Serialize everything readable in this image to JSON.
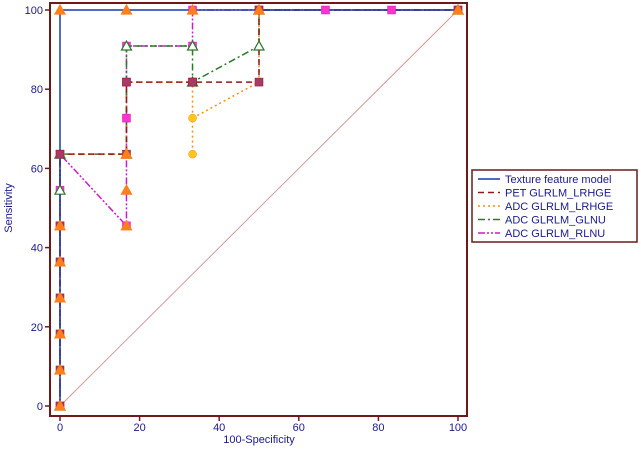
{
  "chart_data": {
    "type": "line",
    "title": "",
    "xlabel": "100-Specificity",
    "ylabel": "Sensitivity",
    "xlim": [
      0,
      100
    ],
    "ylim": [
      0,
      100
    ],
    "xticks": [
      "0",
      "20",
      "40",
      "60",
      "80",
      "100"
    ],
    "yticks": [
      "0",
      "20",
      "40",
      "60",
      "80",
      "100"
    ],
    "grid": false,
    "legend_position": "right",
    "frame_color": "#6b1a1a",
    "reference_line": {
      "x": [
        0,
        100
      ],
      "y": [
        0,
        100
      ],
      "color": "#d49a9a"
    },
    "series": [
      {
        "name": "Texture feature model",
        "color": "#1a3aa8",
        "dash": "solid",
        "marker": "none",
        "x": [
          0,
          0,
          100
        ],
        "y": [
          0,
          100,
          100
        ]
      },
      {
        "name": "PET GLRLM_LRHGE",
        "color": "#8b1a1a",
        "dash": "dash",
        "marker": "square",
        "marker_color": "#a83a6a",
        "x": [
          0,
          0,
          0,
          0,
          0,
          0,
          0,
          16.7,
          16.7,
          33.3,
          33.3,
          50,
          50,
          100
        ],
        "y": [
          0,
          9.1,
          18.2,
          27.3,
          36.4,
          45.5,
          63.6,
          63.6,
          81.8,
          81.8,
          81.8,
          81.8,
          100,
          100
        ]
      },
      {
        "name": "ADC GLRLM_LRHGE",
        "color": "#ff8c1a",
        "dash": "dot",
        "marker": "circle",
        "marker_color": "#ffc61a",
        "x": [
          0,
          0,
          16.7,
          16.7,
          33.3,
          33.3,
          33.3,
          50,
          50,
          100
        ],
        "y": [
          0,
          63.6,
          63.6,
          81.8,
          81.8,
          63.6,
          72.7,
          81.8,
          100,
          100
        ]
      },
      {
        "name": "ADC GLRLM_GLNU",
        "color": "#2a7a2a",
        "dash": "dashdot",
        "marker": "triangle",
        "marker_color": "#ffffff",
        "x": [
          0,
          0,
          0,
          16.7,
          16.7,
          33.3,
          33.3,
          50,
          50,
          100
        ],
        "y": [
          0,
          54.5,
          63.6,
          63.6,
          90.9,
          90.9,
          81.8,
          90.9,
          100,
          100
        ]
      },
      {
        "name": "ADC GLRLM_RLNU",
        "color": "#cc1acc",
        "dash": "dashdotdot",
        "marker": "square",
        "marker_color": "#ff33cc",
        "x": [
          0,
          0,
          0,
          0,
          16.7,
          16.7,
          16.7,
          16.7,
          33.3,
          33.3,
          50,
          66.7,
          83.3,
          100
        ],
        "y": [
          0,
          45.5,
          54.5,
          63.6,
          45.5,
          72.7,
          81.8,
          90.9,
          90.9,
          100,
          100,
          100,
          100,
          100
        ]
      }
    ],
    "orange_markers": {
      "color": "#ff7f1a",
      "x": [
        0,
        0,
        0,
        0,
        0,
        0,
        0,
        16.7,
        16.7,
        16.7,
        16.7,
        33.3,
        50,
        100
      ],
      "y": [
        0,
        9.1,
        18.2,
        27.3,
        36.4,
        45.5,
        100,
        45.5,
        54.5,
        63.6,
        100,
        100,
        100,
        100
      ]
    }
  }
}
